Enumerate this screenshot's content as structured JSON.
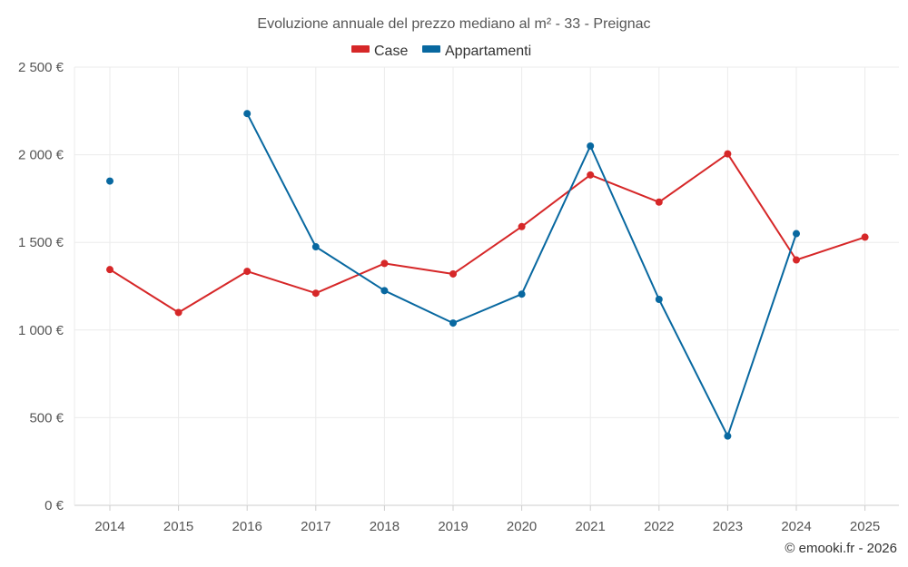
{
  "chart_data": {
    "type": "line",
    "title": "Evoluzione annuale del prezzo mediano al m² - 33 - Preignac",
    "categories": [
      "2014",
      "2015",
      "2016",
      "2017",
      "2018",
      "2019",
      "2020",
      "2021",
      "2022",
      "2023",
      "2024",
      "2025"
    ],
    "y_tick_labels": [
      "0 €",
      "500 €",
      "1 000 €",
      "1 500 €",
      "2 000 €",
      "2 500 €"
    ],
    "y_ticks": [
      0,
      500,
      1000,
      1500,
      2000,
      2500
    ],
    "ylim": [
      0,
      2500
    ],
    "grid": true,
    "legend_position": "top-center",
    "series": [
      {
        "name": "Case",
        "color": "#d62728",
        "values": [
          1345,
          1100,
          1335,
          1210,
          1380,
          1320,
          1590,
          1885,
          1730,
          2005,
          1400,
          1530
        ]
      },
      {
        "name": "Appartamenti",
        "color": "#0868a0",
        "values": [
          1850,
          null,
          2235,
          1475,
          1225,
          1040,
          1205,
          2050,
          1175,
          395,
          1550,
          null
        ]
      }
    ]
  },
  "credit": "© emooki.fr - 2026"
}
